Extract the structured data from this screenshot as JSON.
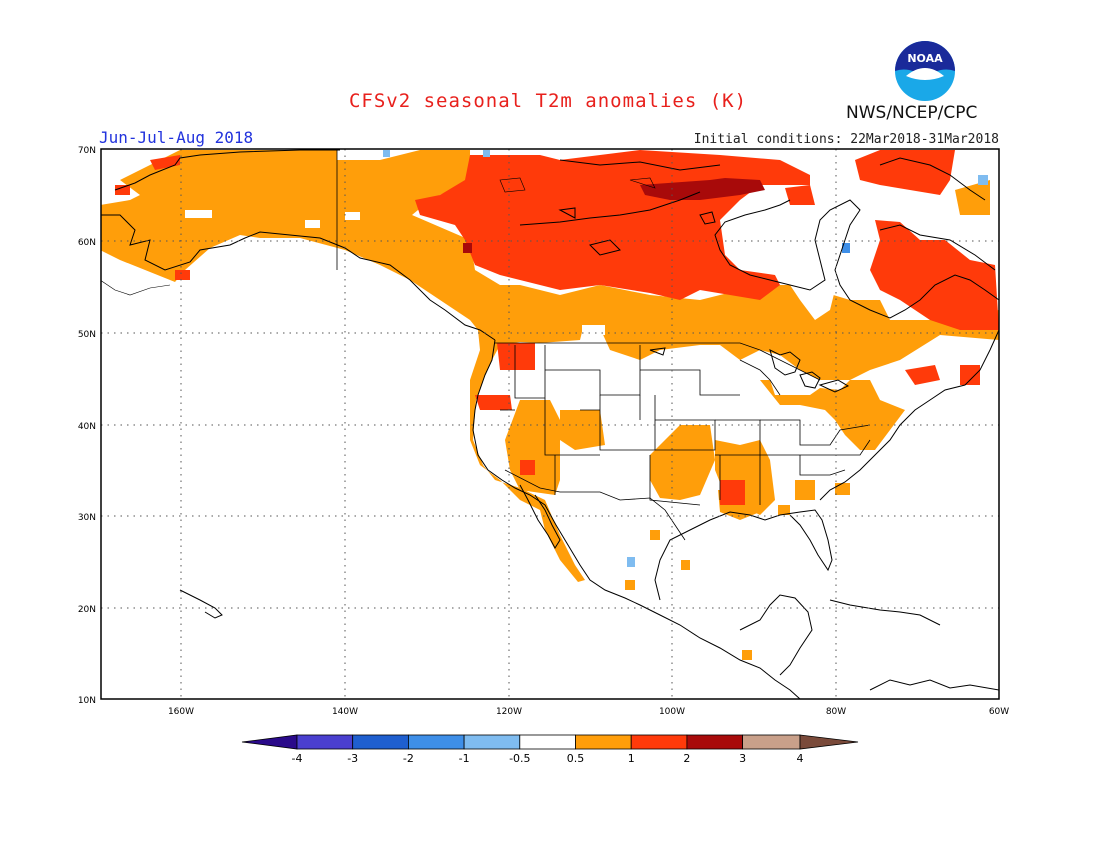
{
  "header": {
    "title": "CFSv2 seasonal T2m anomalies (K)",
    "season": "Jun-Jul-Aug 2018",
    "initial_conditions": "Initial conditions: 22Mar2018-31Mar2018",
    "agency": "NWS/NCEP/CPC",
    "logo_text": "NOAA"
  },
  "map": {
    "lat_labels": [
      "70N",
      "60N",
      "50N",
      "40N",
      "30N",
      "20N",
      "10N"
    ],
    "lon_labels": [
      "160W",
      "140W",
      "120W",
      "100W",
      "80W",
      "60W"
    ],
    "region": "North America",
    "gridlines": "dotted"
  },
  "colorbar": {
    "tick_labels": [
      "-4",
      "-3",
      "-2",
      "-1",
      "-0.5",
      "0.5",
      "1",
      "2",
      "3",
      "4"
    ],
    "colors": {
      "below_-4": "#2a0a8a",
      "-4_-3": "#4a3fcf",
      "-3_-2": "#1f5fcf",
      "-2_-1": "#3e8fe8",
      "-1_-0.5": "#7fbcf0",
      "-0.5_0.5": "#ffffff",
      "0.5_1": "#ff9e0a",
      "1_2": "#ff3a0a",
      "2_3": "#a80a0a",
      "3_4": "#c9a08a",
      "above_4": "#7a4a3a"
    }
  },
  "colors": {
    "title": "#e8201c",
    "season": "#2233dd",
    "warm_05_1": "#ff9e0a",
    "warm_1_2": "#ff3a0a",
    "warm_2_3": "#a80a0a",
    "cool_05_1": "#7fbcf0",
    "cool_1_2": "#3e8fe8"
  }
}
